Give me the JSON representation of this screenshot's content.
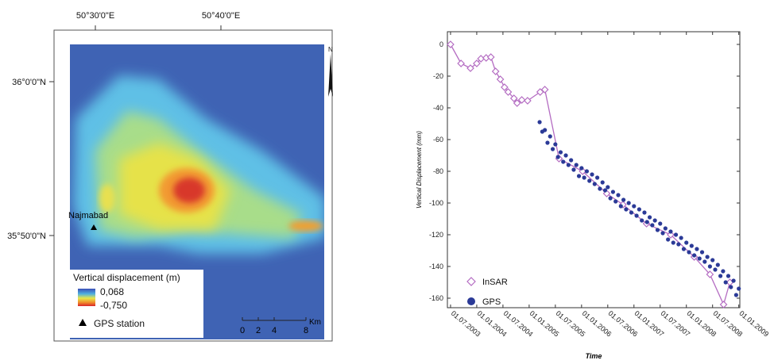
{
  "map": {
    "lon_labels": [
      "50°30'0\"E",
      "50°40'0\"E"
    ],
    "lat_labels": [
      "36°0'0\"N",
      "35°50'0\"N"
    ],
    "place": "Najmabad",
    "north": "N",
    "legend": {
      "title": "Vertical displacement (m)",
      "max": "0,068",
      "min": "-0,750",
      "gps": "GPS station"
    },
    "scale": {
      "ticks": [
        "0",
        "2",
        "4",
        "8"
      ],
      "unit": "Km"
    }
  },
  "chart_data": {
    "type": "line",
    "x_label": "Time",
    "y_label": "Vertical Displacement (mm)",
    "xlim": [
      2003.44,
      2009.02
    ],
    "ylim": [
      -166,
      8
    ],
    "xticks": [
      {
        "value": 2003.5,
        "label": "01.07.2003"
      },
      {
        "value": 2004.0,
        "label": "01.01.2004"
      },
      {
        "value": 2004.5,
        "label": "01.07.2004"
      },
      {
        "value": 2005.0,
        "label": "01.01.2005"
      },
      {
        "value": 2005.5,
        "label": "01.07.2005"
      },
      {
        "value": 2006.0,
        "label": "01.01.2006"
      },
      {
        "value": 2006.5,
        "label": "01.07.2006"
      },
      {
        "value": 2007.0,
        "label": "01.01.2007"
      },
      {
        "value": 2007.5,
        "label": "01.07.2007"
      },
      {
        "value": 2008.0,
        "label": "01.01.2008"
      },
      {
        "value": 2008.5,
        "label": "01.07.2008"
      },
      {
        "value": 2009.0,
        "label": "01.01.2009"
      }
    ],
    "yticks": [
      0,
      -20,
      -40,
      -60,
      -80,
      -100,
      -120,
      -140,
      -160
    ],
    "series": [
      {
        "name": "InSAR",
        "color": "#b46cc2",
        "marker": "diamond",
        "line": true,
        "x": [
          2003.5,
          2003.7,
          2003.88,
          2004.0,
          2004.08,
          2004.18,
          2004.27,
          2004.36,
          2004.45,
          2004.53,
          2004.6,
          2004.71,
          2004.77,
          2004.86,
          2004.97,
          2005.21,
          2005.3,
          2005.57,
          2006.02,
          2006.48,
          2006.79,
          2007.24,
          2007.7,
          2008.15,
          2008.45,
          2008.71,
          2008.83
        ],
        "values": [
          0,
          -12,
          -15,
          -12,
          -9,
          -8.5,
          -8,
          -17,
          -22,
          -27,
          -30,
          -34,
          -37,
          -35,
          -35.5,
          -30,
          -28.5,
          -72,
          -80,
          -94,
          -101,
          -113,
          -120,
          -134,
          -145,
          -164,
          -150
        ]
      },
      {
        "name": "GPS",
        "color": "#2b3a97",
        "marker": "circle",
        "line": false,
        "x": [
          2005.2,
          2005.25,
          2005.3,
          2005.35,
          2005.4,
          2005.45,
          2005.5,
          2005.55,
          2005.6,
          2005.65,
          2005.7,
          2005.75,
          2005.8,
          2005.85,
          2005.9,
          2005.95,
          2006.0,
          2006.05,
          2006.1,
          2006.15,
          2006.2,
          2006.25,
          2006.3,
          2006.35,
          2006.4,
          2006.45,
          2006.5,
          2006.55,
          2006.6,
          2006.65,
          2006.7,
          2006.75,
          2006.8,
          2006.85,
          2006.9,
          2006.95,
          2007.0,
          2007.05,
          2007.1,
          2007.15,
          2007.2,
          2007.25,
          2007.3,
          2007.35,
          2007.4,
          2007.45,
          2007.5,
          2007.55,
          2007.6,
          2007.65,
          2007.7,
          2007.75,
          2007.8,
          2007.85,
          2007.9,
          2007.95,
          2008.0,
          2008.05,
          2008.1,
          2008.15,
          2008.2,
          2008.25,
          2008.3,
          2008.35,
          2008.4,
          2008.45,
          2008.5,
          2008.55,
          2008.6,
          2008.65,
          2008.7,
          2008.75,
          2008.8,
          2008.85,
          2008.9,
          2008.95,
          2009.0
        ],
        "values": [
          -49,
          -55,
          -54,
          -62,
          -58,
          -66,
          -63,
          -71,
          -68,
          -74,
          -70,
          -76,
          -73,
          -79,
          -76,
          -83,
          -78,
          -84,
          -80,
          -86,
          -82,
          -88,
          -84,
          -91,
          -87,
          -92,
          -90,
          -97,
          -93,
          -99,
          -95,
          -102,
          -98,
          -104,
          -100,
          -106,
          -102,
          -108,
          -104,
          -111,
          -106,
          -112,
          -109,
          -114,
          -111,
          -117,
          -113,
          -119,
          -116,
          -123,
          -118,
          -125,
          -120,
          -126,
          -122,
          -129,
          -125,
          -131,
          -127,
          -133,
          -129,
          -135,
          -131,
          -137,
          -134,
          -140,
          -136,
          -142,
          -139,
          -146,
          -143,
          -150,
          -146,
          -153,
          -149,
          -158,
          -154
        ]
      }
    ]
  }
}
